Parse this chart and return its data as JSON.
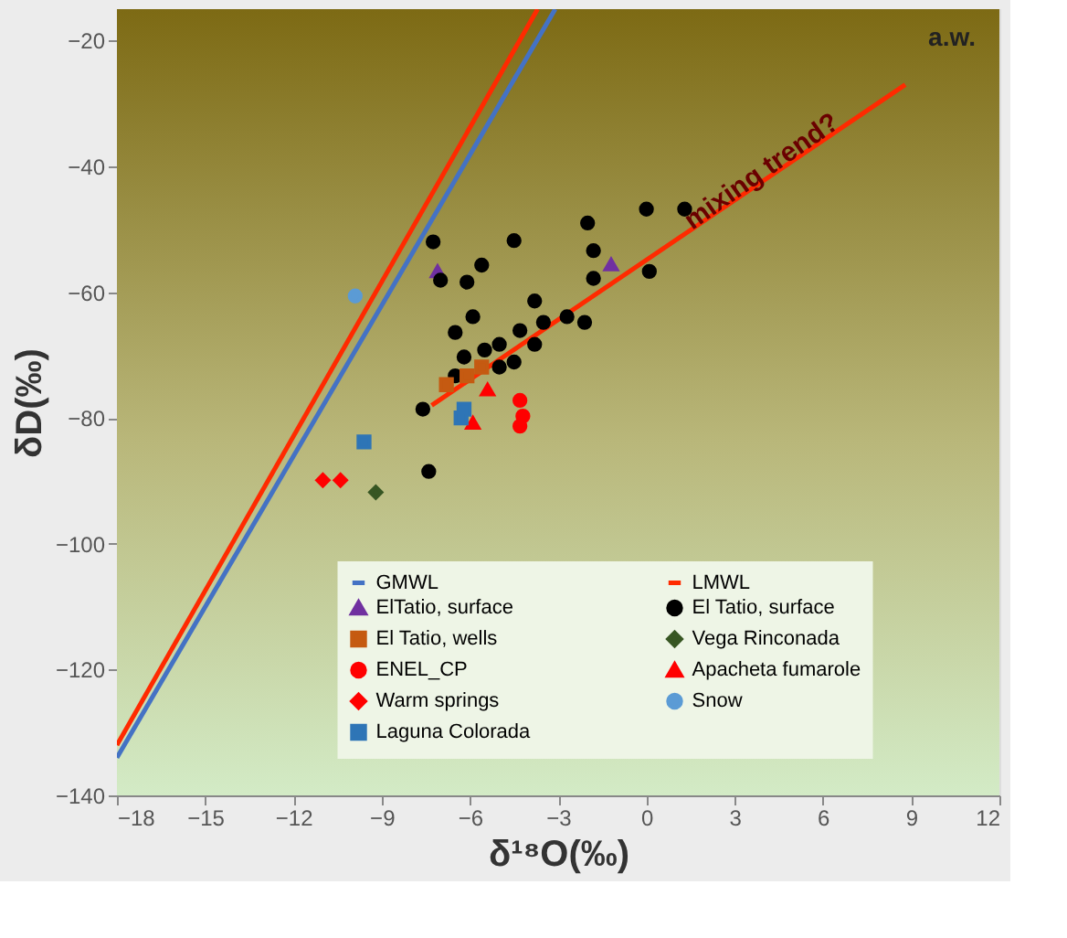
{
  "chart_data": {
    "type": "scatter",
    "xlabel": "δ¹⁸O(‰)",
    "ylabel": "δD(‰)",
    "xlim": [
      -18,
      12
    ],
    "ylim": [
      -140,
      -15
    ],
    "xticks": [
      -18,
      -15,
      -12,
      -9,
      -6,
      -3,
      0,
      3,
      6,
      9,
      12
    ],
    "yticks": [
      -140,
      -120,
      -100,
      -80,
      -60,
      -40,
      -20
    ],
    "legend": "bottom",
    "series": [
      {
        "name": "GMWL",
        "type": "line",
        "color": "#4472c4",
        "x": [
          -18,
          -3.1
        ],
        "values": [
          -134,
          -15
        ]
      },
      {
        "name": "LMWL",
        "type": "line",
        "color": "#ff2a00",
        "x": [
          -18,
          -3.7
        ],
        "values": [
          -132,
          -15
        ]
      },
      {
        "name": "ElTatio, surface",
        "marker": "triangle",
        "color": "#7030a0",
        "x": [
          -7.1,
          -1.2
        ],
        "values": [
          -56.7,
          -55.6
        ]
      },
      {
        "name": "El Tatio, surface",
        "marker": "circle",
        "color": "#000000",
        "x": [
          -7.25,
          -2.0,
          0.0,
          -1.8,
          -1.8,
          0.1,
          -7.0,
          -6.1,
          -5.6,
          -4.5,
          -3.8,
          -5.9,
          -2.7,
          -2.1,
          -3.5,
          -4.3,
          -6.5,
          -5.5,
          -5.0,
          -3.8,
          -6.2,
          -4.5,
          -5.0,
          -6.5,
          -7.6,
          -7.4,
          1.3
        ],
        "values": [
          -52,
          -49,
          -46.8,
          -53.4,
          -57.8,
          -56.7,
          -58.1,
          -58.4,
          -55.7,
          -51.8,
          -61.4,
          -63.9,
          -63.9,
          -64.8,
          -64.8,
          -66.1,
          -66.4,
          -69.2,
          -68.3,
          -68.3,
          -70.3,
          -71.1,
          -71.9,
          -73.3,
          -78.6,
          -88.5,
          -46.8
        ]
      },
      {
        "name": "El Tatio, wells",
        "marker": "square",
        "color": "#c55a11",
        "x": [
          -6.8,
          -6.1,
          -5.6
        ],
        "values": [
          -74.7,
          -73.3,
          -71.9
        ]
      },
      {
        "name": "Vega Rinconada",
        "marker": "diamond",
        "color": "#375623",
        "x": [
          -9.2
        ],
        "values": [
          -91.8
        ]
      },
      {
        "name": "ENEL_CP",
        "marker": "circle",
        "color": "#ff0000",
        "x": [
          -4.3,
          -4.2,
          -4.3
        ],
        "values": [
          -77.2,
          -79.7,
          -81.3
        ]
      },
      {
        "name": "Apacheta fumarole",
        "marker": "triangle",
        "color": "#ff0000",
        "x": [
          -5.4,
          -5.9
        ],
        "values": [
          -75.5,
          -80.8
        ]
      },
      {
        "name": "Warm springs",
        "marker": "diamond",
        "color": "#ff0000",
        "x": [
          -11.0,
          -10.4
        ],
        "values": [
          -89.9,
          -89.9
        ]
      },
      {
        "name": "Snow",
        "marker": "circle",
        "color": "#5b9bd5",
        "x": [
          -9.9
        ],
        "values": [
          -60.6
        ]
      },
      {
        "name": "Laguna Colorada",
        "marker": "square",
        "color": "#2e75b6",
        "x": [
          -9.6,
          -6.2,
          -6.3
        ],
        "values": [
          -83.8,
          -78.6,
          -80.0
        ]
      },
      {
        "type": "line",
        "color": "#ff2a00",
        "x": [
          -7.3,
          8.8
        ],
        "values": [
          -78,
          -27
        ]
      }
    ],
    "annotations": [
      {
        "text": "mixing trend?",
        "x": 3.9,
        "y": -40.7
      },
      "a.w."
    ]
  }
}
